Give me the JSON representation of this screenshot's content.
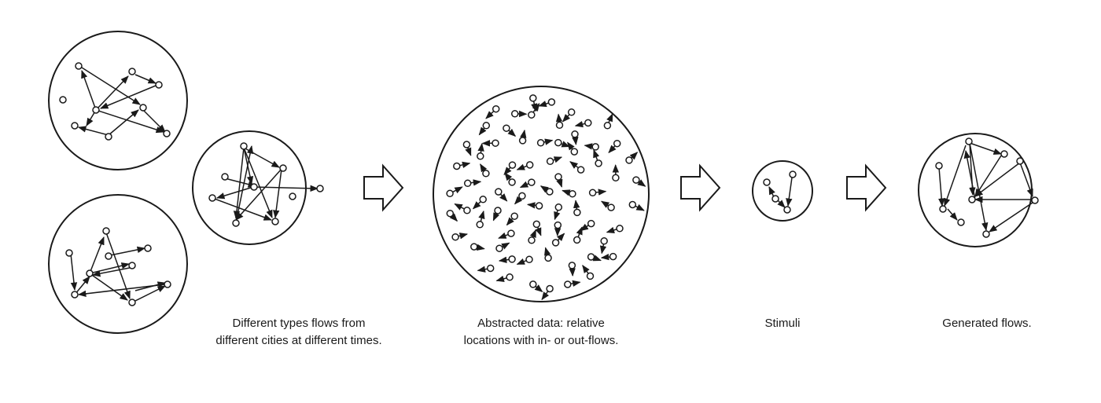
{
  "captions": {
    "sources": {
      "line1": "Different types flows from",
      "line2": "different cities at different times."
    },
    "abstracted": {
      "line1": "Abstracted data: relative",
      "line2": "locations with in- or out-flows."
    },
    "stimuli": {
      "line1": "Stimuli"
    },
    "generated": {
      "line1": "Generated flows."
    }
  },
  "colors": {
    "stroke": "#1a1a1a",
    "background": "#ffffff"
  }
}
